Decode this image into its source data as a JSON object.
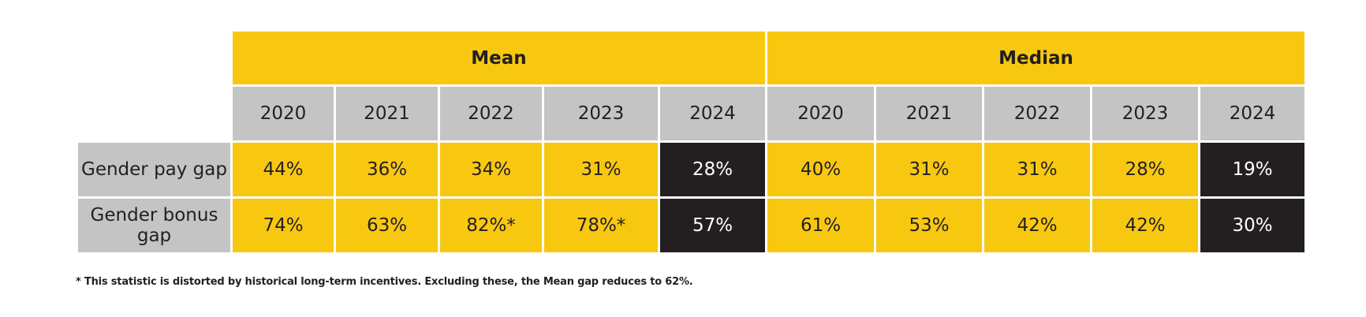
{
  "chart_data": {
    "type": "table",
    "groups": [
      {
        "name": "Mean",
        "years": [
          "2020",
          "2021",
          "2022",
          "2023",
          "2024"
        ]
      },
      {
        "name": "Median",
        "years": [
          "2020",
          "2021",
          "2022",
          "2023",
          "2024"
        ]
      }
    ],
    "rows": [
      {
        "label": "Gender pay gap",
        "mean": [
          "44%",
          "36%",
          "34%",
          "31%",
          "28%"
        ],
        "median": [
          "40%",
          "31%",
          "31%",
          "28%",
          "19%"
        ]
      },
      {
        "label": "Gender bonus gap",
        "mean": [
          "74%",
          "63%",
          "82%*",
          "78%*",
          "57%"
        ],
        "median": [
          "61%",
          "53%",
          "42%",
          "42%",
          "30%"
        ]
      }
    ],
    "highlighted_year": "2024",
    "colors": {
      "accent": "#f8c811",
      "header_grey": "#c4c4c4",
      "highlight": "#231f20",
      "text": "#231f20",
      "highlight_text": "#ffffff"
    }
  },
  "footnote": "* This statistic is distorted by historical long-term incentives. Excluding these, the Mean gap reduces to 62%."
}
